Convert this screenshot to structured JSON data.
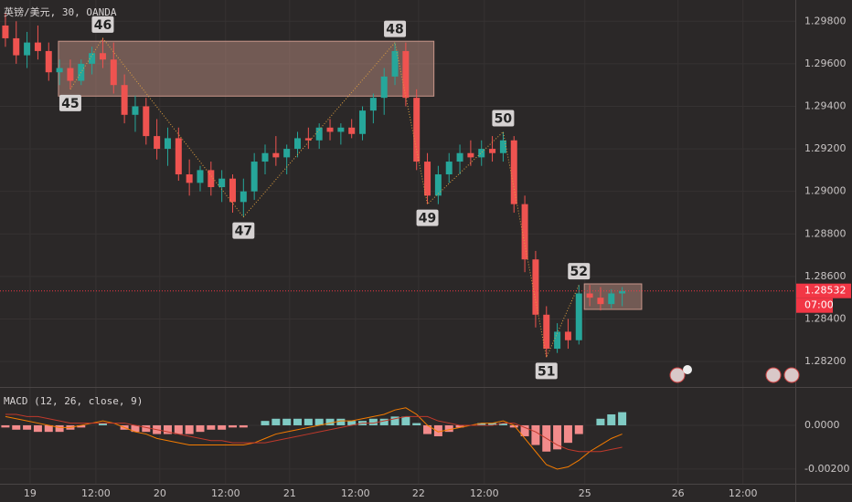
{
  "chart_data": [
    {
      "type": "candlestick",
      "title": "英镑/美元, 30, OANDA",
      "open": [
        1.2978,
        1.2972,
        1.2964,
        1.297,
        1.2966,
        1.2956,
        1.2958,
        1.2952,
        1.296,
        1.2965,
        1.2962,
        1.295,
        1.2936,
        1.294,
        1.2926,
        1.292,
        1.2925,
        1.2908,
        1.2904,
        1.291,
        1.2902,
        1.2906,
        1.2895,
        1.29,
        1.2914,
        1.2918,
        1.2916,
        1.292,
        1.2925,
        1.2924,
        1.293,
        1.2928,
        1.293,
        1.2927,
        1.2938,
        1.2944,
        1.2954,
        1.2966,
        1.2944,
        1.2914,
        1.2898,
        1.2908,
        1.2914,
        1.2918,
        1.2916,
        1.292,
        1.2918,
        1.2924,
        1.2894,
        1.2868,
        1.2842,
        1.2826,
        1.2834,
        1.283,
        1.2852,
        1.285,
        1.2847,
        1.2852
      ],
      "high": [
        1.2984,
        1.298,
        1.2975,
        1.2978,
        1.297,
        1.2962,
        1.2962,
        1.2962,
        1.2968,
        1.2972,
        1.297,
        1.2955,
        1.2945,
        1.2944,
        1.2934,
        1.293,
        1.293,
        1.2915,
        1.2912,
        1.2914,
        1.291,
        1.2908,
        1.2906,
        1.2918,
        1.2922,
        1.2926,
        1.2922,
        1.2928,
        1.293,
        1.2932,
        1.2934,
        1.2932,
        1.2934,
        1.294,
        1.2946,
        1.2958,
        1.297,
        1.297,
        1.2948,
        1.2918,
        1.2912,
        1.2918,
        1.2922,
        1.2924,
        1.2924,
        1.2926,
        1.2928,
        1.2926,
        1.2898,
        1.2872,
        1.2846,
        1.2838,
        1.284,
        1.2856,
        1.2856,
        1.2855,
        1.2854,
        1.2855
      ],
      "low": [
        1.2968,
        1.296,
        1.2958,
        1.2962,
        1.2952,
        1.295,
        1.2948,
        1.295,
        1.2955,
        1.2958,
        1.2946,
        1.2932,
        1.2928,
        1.2922,
        1.2915,
        1.2912,
        1.2905,
        1.2898,
        1.29,
        1.2898,
        1.2895,
        1.289,
        1.2888,
        1.2896,
        1.2908,
        1.2912,
        1.2908,
        1.2916,
        1.292,
        1.292,
        1.2924,
        1.2922,
        1.2925,
        1.2924,
        1.2932,
        1.2936,
        1.295,
        1.294,
        1.291,
        1.2894,
        1.2894,
        1.2904,
        1.2908,
        1.2912,
        1.2912,
        1.2914,
        1.2914,
        1.289,
        1.2862,
        1.2836,
        1.2822,
        1.2824,
        1.2826,
        1.2828,
        1.2846,
        1.2844,
        1.2845,
        1.2846
      ],
      "close": [
        1.2972,
        1.2964,
        1.297,
        1.2966,
        1.2956,
        1.2958,
        1.2952,
        1.296,
        1.2965,
        1.2962,
        1.295,
        1.2936,
        1.294,
        1.2926,
        1.292,
        1.2925,
        1.2908,
        1.2904,
        1.291,
        1.2902,
        1.2906,
        1.2895,
        1.29,
        1.2914,
        1.2918,
        1.2916,
        1.292,
        1.2925,
        1.2924,
        1.293,
        1.2928,
        1.293,
        1.2927,
        1.2938,
        1.2944,
        1.2954,
        1.2966,
        1.2944,
        1.2914,
        1.2898,
        1.2908,
        1.2914,
        1.2918,
        1.2916,
        1.292,
        1.2918,
        1.2924,
        1.2894,
        1.2868,
        1.2842,
        1.2826,
        1.2834,
        1.283,
        1.2852,
        1.285,
        1.2847,
        1.2852,
        1.28532
      ],
      "up_color": "#26a69a",
      "down_color": "#ef5350",
      "xlim": [
        -0.5,
        73
      ],
      "xticks": [
        {
          "value": 2.28,
          "label": "19"
        },
        {
          "value": 8.36,
          "label": "12:00"
        },
        {
          "value": 14.27,
          "label": "20"
        },
        {
          "value": 20.35,
          "label": "12:00"
        },
        {
          "value": 26.27,
          "label": "21"
        },
        {
          "value": 32.35,
          "label": "12:00"
        },
        {
          "value": 38.18,
          "label": "22"
        },
        {
          "value": 44.26,
          "label": "12:00"
        },
        {
          "value": 53.55,
          "label": "25"
        },
        {
          "value": 62.16,
          "label": "26"
        },
        {
          "value": 68.16,
          "label": "12:00"
        }
      ],
      "ylim": [
        1.2808,
        1.299
      ],
      "yticks": [
        {
          "value": 1.298,
          "label": "1.29800"
        },
        {
          "value": 1.296,
          "label": "1.29600"
        },
        {
          "value": 1.294,
          "label": "1.29400"
        },
        {
          "value": 1.292,
          "label": "1.29200"
        },
        {
          "value": 1.29,
          "label": "1.29000"
        },
        {
          "value": 1.288,
          "label": "1.28800"
        },
        {
          "value": 1.286,
          "label": "1.28600"
        },
        {
          "value": 1.284,
          "label": "1.28400"
        },
        {
          "value": 1.282,
          "label": "1.28200"
        }
      ],
      "grid": true,
      "last_price": {
        "value": 1.28532,
        "label": "1.28532"
      },
      "countdown": "07:00",
      "last_price_color": "#f23645",
      "pivots": [
        {
          "label": "45",
          "x": 6,
          "price": 1.2948
        },
        {
          "label": "46",
          "x": 9,
          "price": 1.2972
        },
        {
          "label": "47",
          "x": 22,
          "price": 1.2888
        },
        {
          "label": "48",
          "x": 36,
          "price": 1.297
        },
        {
          "label": "49",
          "x": 39,
          "price": 1.2894
        },
        {
          "label": "50",
          "x": 46,
          "price": 1.2928
        },
        {
          "label": "51",
          "x": 50,
          "price": 1.2822
        },
        {
          "label": "52",
          "x": 53,
          "price": 1.2856
        }
      ],
      "zigzag_color": "#e0a040",
      "zones": [
        {
          "x0": 4.9,
          "x1": 39.6,
          "top": 1.29706,
          "bottom": 1.29448
        },
        {
          "x0": 53.5,
          "x1": 58.8,
          "top": 1.28565,
          "bottom": 1.28445
        }
      ],
      "zone_color": "#c9968a"
    },
    {
      "type": "macd",
      "title": "MACD (12, 26, close, 9)",
      "histogram": [
        -0.0001,
        -0.0002,
        -0.0002,
        -0.0003,
        -0.0003,
        -0.0003,
        -0.0002,
        -0.0001,
        0,
        0.0001,
        0,
        -0.0002,
        -0.0003,
        -0.0003,
        -0.0004,
        -0.0004,
        -0.0004,
        -0.0004,
        -0.0003,
        -0.0002,
        -0.0002,
        -0.0001,
        -0.0001,
        0,
        0.0002,
        0.0003,
        0.0003,
        0.0003,
        0.0003,
        0.0003,
        0.0003,
        0.0003,
        0.0002,
        0.0002,
        0.0003,
        0.0003,
        0.0004,
        0.0004,
        0.0001,
        -0.0004,
        -0.0005,
        -0.0003,
        -0.0001,
        0,
        0.0001,
        0.0001,
        0.0001,
        -0.0001,
        -0.0005,
        -0.0009,
        -0.0012,
        -0.0011,
        -0.0008,
        -0.0004,
        0,
        0.0003,
        0.0005,
        0.0006
      ],
      "positive_color": "#80cbc4",
      "negative_color": "#f28b8b",
      "series": [
        {
          "name": "MACD",
          "color": "#f57c00",
          "values": [
            0.0004,
            0.0003,
            0.0002,
            0.0001,
            0,
            -0.0001,
            -0.0001,
            0,
            0.0001,
            0.0002,
            0.0001,
            -0.0001,
            -0.0003,
            -0.0004,
            -0.0006,
            -0.0007,
            -0.0008,
            -0.0009,
            -0.0009,
            -0.0009,
            -0.0009,
            -0.0009,
            -0.0009,
            -0.0008,
            -0.0006,
            -0.0004,
            -0.0003,
            -0.0002,
            -0.0001,
            0,
            0.0001,
            0.0002,
            0.0002,
            0.0003,
            0.0004,
            0.0005,
            0.0007,
            0.0008,
            0.0005,
            0,
            -0.0003,
            -0.0002,
            -0.0001,
            0,
            0.0001,
            0.0001,
            0.0002,
            0,
            -0.0006,
            -0.0012,
            -0.0018,
            -0.002,
            -0.0019,
            -0.0016,
            -0.0012,
            -0.0009,
            -0.0006,
            -0.0004
          ]
        },
        {
          "name": "Signal",
          "color": "#c0392b",
          "values": [
            0.0005,
            0.0005,
            0.0004,
            0.0004,
            0.0003,
            0.0002,
            0.0001,
            0.0001,
            0.0001,
            0.0001,
            0.0001,
            0.0001,
            0,
            -0.0001,
            -0.0002,
            -0.0003,
            -0.0004,
            -0.0005,
            -0.0006,
            -0.0007,
            -0.0007,
            -0.0008,
            -0.0008,
            -0.0008,
            -0.0008,
            -0.0007,
            -0.0006,
            -0.0005,
            -0.0004,
            -0.0003,
            -0.0002,
            -0.0001,
            0,
            0.0001,
            0.0001,
            0.0002,
            0.0003,
            0.0004,
            0.0004,
            0.0004,
            0.0002,
            0.0001,
            0,
            0,
            0,
            0,
            0.0001,
            0.0001,
            -0.0001,
            -0.0003,
            -0.0006,
            -0.0009,
            -0.0011,
            -0.0012,
            -0.0012,
            -0.0012,
            -0.0011,
            -0.001
          ]
        }
      ],
      "ylim": [
        -0.00267,
        0.00175
      ],
      "yticks": [
        {
          "value": 0,
          "label": "0.0000"
        },
        {
          "value": -0.002,
          "label": "-0.00200"
        }
      ]
    }
  ]
}
